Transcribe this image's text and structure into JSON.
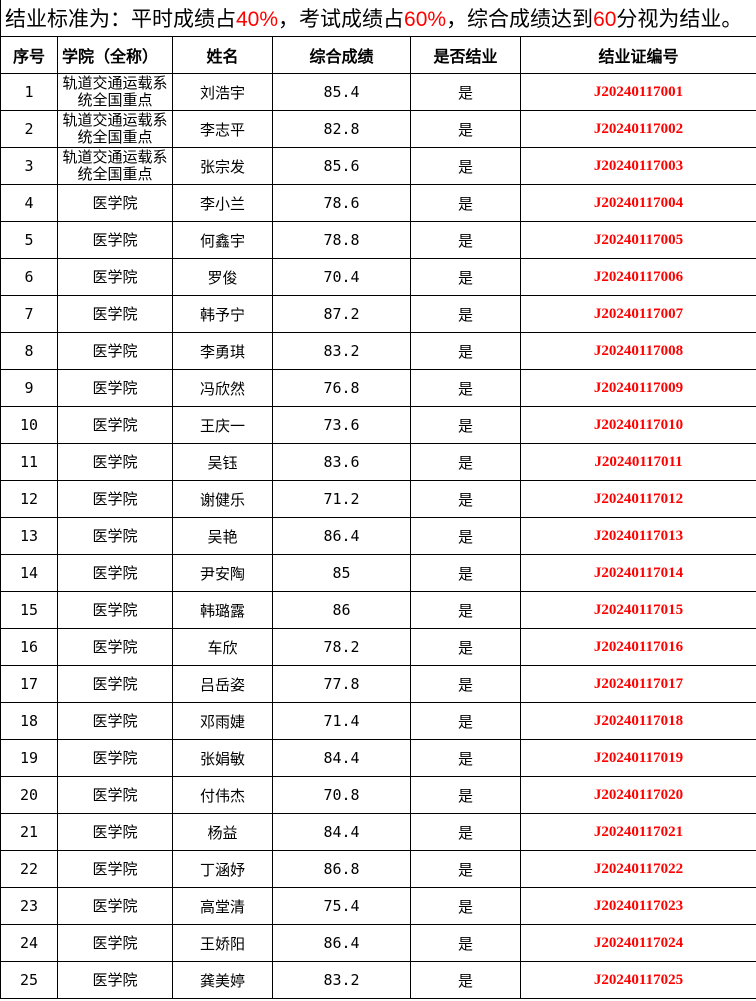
{
  "title": {
    "p1": "结业标准为：平时成绩占",
    "v1": "40%",
    "p2": "，考试成绩占",
    "v2": "60%",
    "p3": "，综合成绩达到",
    "v3": "60",
    "p4": "分视为结业。"
  },
  "colors": {
    "accent": "#ff0000",
    "text": "#000000",
    "border": "#000000"
  },
  "headers": [
    "序号",
    "学院（全称）",
    "姓名",
    "综合成绩",
    "是否结业",
    "结业证编号"
  ],
  "rows": [
    [
      "1",
      "轨道交通运载系统全国重点",
      "刘浩宇",
      "85.4",
      "是",
      "J20240117001"
    ],
    [
      "2",
      "轨道交通运载系统全国重点",
      "李志平",
      "82.8",
      "是",
      "J20240117002"
    ],
    [
      "3",
      "轨道交通运载系统全国重点",
      "张宗发",
      "85.6",
      "是",
      "J20240117003"
    ],
    [
      "4",
      "医学院",
      "李小兰",
      "78.6",
      "是",
      "J20240117004"
    ],
    [
      "5",
      "医学院",
      "何鑫宇",
      "78.8",
      "是",
      "J20240117005"
    ],
    [
      "6",
      "医学院",
      "罗俊",
      "70.4",
      "是",
      "J20240117006"
    ],
    [
      "7",
      "医学院",
      "韩予宁",
      "87.2",
      "是",
      "J20240117007"
    ],
    [
      "8",
      "医学院",
      "李勇琪",
      "83.2",
      "是",
      "J20240117008"
    ],
    [
      "9",
      "医学院",
      "冯欣然",
      "76.8",
      "是",
      "J20240117009"
    ],
    [
      "10",
      "医学院",
      "王庆一",
      "73.6",
      "是",
      "J20240117010"
    ],
    [
      "11",
      "医学院",
      "吴钰",
      "83.6",
      "是",
      "J20240117011"
    ],
    [
      "12",
      "医学院",
      "谢健乐",
      "71.2",
      "是",
      "J20240117012"
    ],
    [
      "13",
      "医学院",
      "吴艳",
      "86.4",
      "是",
      "J20240117013"
    ],
    [
      "14",
      "医学院",
      "尹安陶",
      "85",
      "是",
      "J20240117014"
    ],
    [
      "15",
      "医学院",
      "韩璐露",
      "86",
      "是",
      "J20240117015"
    ],
    [
      "16",
      "医学院",
      "车欣",
      "78.2",
      "是",
      "J20240117016"
    ],
    [
      "17",
      "医学院",
      "吕岳姿",
      "77.8",
      "是",
      "J20240117017"
    ],
    [
      "18",
      "医学院",
      "邓雨婕",
      "71.4",
      "是",
      "J20240117018"
    ],
    [
      "19",
      "医学院",
      "张娟敏",
      "84.4",
      "是",
      "J20240117019"
    ],
    [
      "20",
      "医学院",
      "付伟杰",
      "70.8",
      "是",
      "J20240117020"
    ],
    [
      "21",
      "医学院",
      "杨益",
      "84.4",
      "是",
      "J20240117021"
    ],
    [
      "22",
      "医学院",
      "丁涵妤",
      "86.8",
      "是",
      "J20240117022"
    ],
    [
      "23",
      "医学院",
      "高堂清",
      "75.4",
      "是",
      "J20240117023"
    ],
    [
      "24",
      "医学院",
      "王娇阳",
      "86.4",
      "是",
      "J20240117024"
    ],
    [
      "25",
      "医学院",
      "龚美婷",
      "83.2",
      "是",
      "J20240117025"
    ]
  ]
}
